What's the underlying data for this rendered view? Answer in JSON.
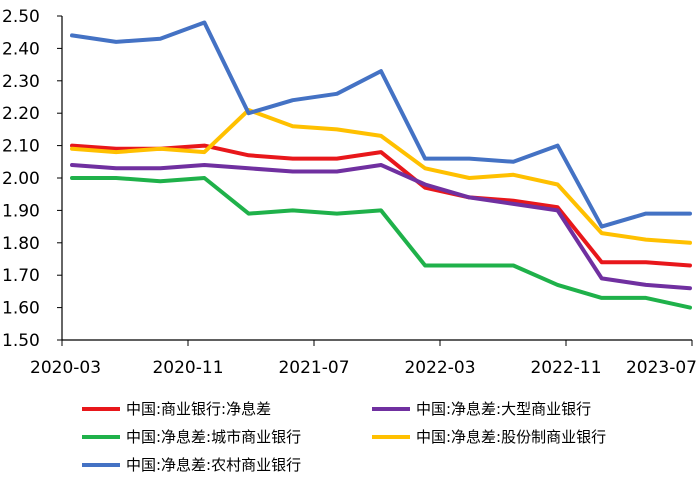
{
  "chart_data": {
    "type": "line",
    "title": "",
    "xlabel": "",
    "ylabel": "",
    "ylim": [
      1.5,
      2.5
    ],
    "yticks": [
      "2.50",
      "2.40",
      "2.30",
      "2.20",
      "2.10",
      "2.00",
      "1.90",
      "1.80",
      "1.70",
      "1.60",
      "1.50"
    ],
    "x": [
      "2020-03",
      "2020-06",
      "2020-09",
      "2020-12",
      "2021-03",
      "2021-06",
      "2021-09",
      "2021-12",
      "2022-03",
      "2022-06",
      "2022-09",
      "2022-12",
      "2023-03",
      "2023-06",
      "2023-09"
    ],
    "xtick_labels": [
      "2020-03",
      "2020-11",
      "2021-07",
      "2022-03",
      "2022-11",
      "2023-07"
    ],
    "grid": false,
    "legend_placement": "bottom",
    "series": [
      {
        "name": "中国:商业银行:净息差",
        "color": "#e8171b",
        "values": [
          2.1,
          2.09,
          2.09,
          2.1,
          2.07,
          2.06,
          2.06,
          2.08,
          1.97,
          1.94,
          1.93,
          1.91,
          1.74,
          1.74,
          1.73
        ]
      },
      {
        "name": "中国:净息差:大型商业银行",
        "color": "#7030a0",
        "values": [
          2.04,
          2.03,
          2.03,
          2.04,
          2.03,
          2.02,
          2.02,
          2.04,
          1.98,
          1.94,
          1.92,
          1.9,
          1.69,
          1.67,
          1.66
        ]
      },
      {
        "name": "中国:净息差:城市商业银行",
        "color": "#1fb14a",
        "values": [
          2.0,
          2.0,
          1.99,
          2.0,
          1.89,
          1.9,
          1.89,
          1.9,
          1.73,
          1.73,
          1.73,
          1.67,
          1.63,
          1.63,
          1.6
        ]
      },
      {
        "name": "中国:净息差:股份制商业银行",
        "color": "#ffc000",
        "values": [
          2.09,
          2.08,
          2.09,
          2.08,
          2.21,
          2.16,
          2.15,
          2.13,
          2.03,
          2.0,
          2.01,
          1.98,
          1.83,
          1.81,
          1.8
        ]
      },
      {
        "name": "中国:净息差:农村商业银行",
        "color": "#4472c4",
        "values": [
          2.44,
          2.42,
          2.43,
          2.48,
          2.2,
          2.24,
          2.26,
          2.33,
          2.06,
          2.06,
          2.05,
          2.1,
          1.85,
          1.89,
          1.89
        ]
      }
    ]
  }
}
